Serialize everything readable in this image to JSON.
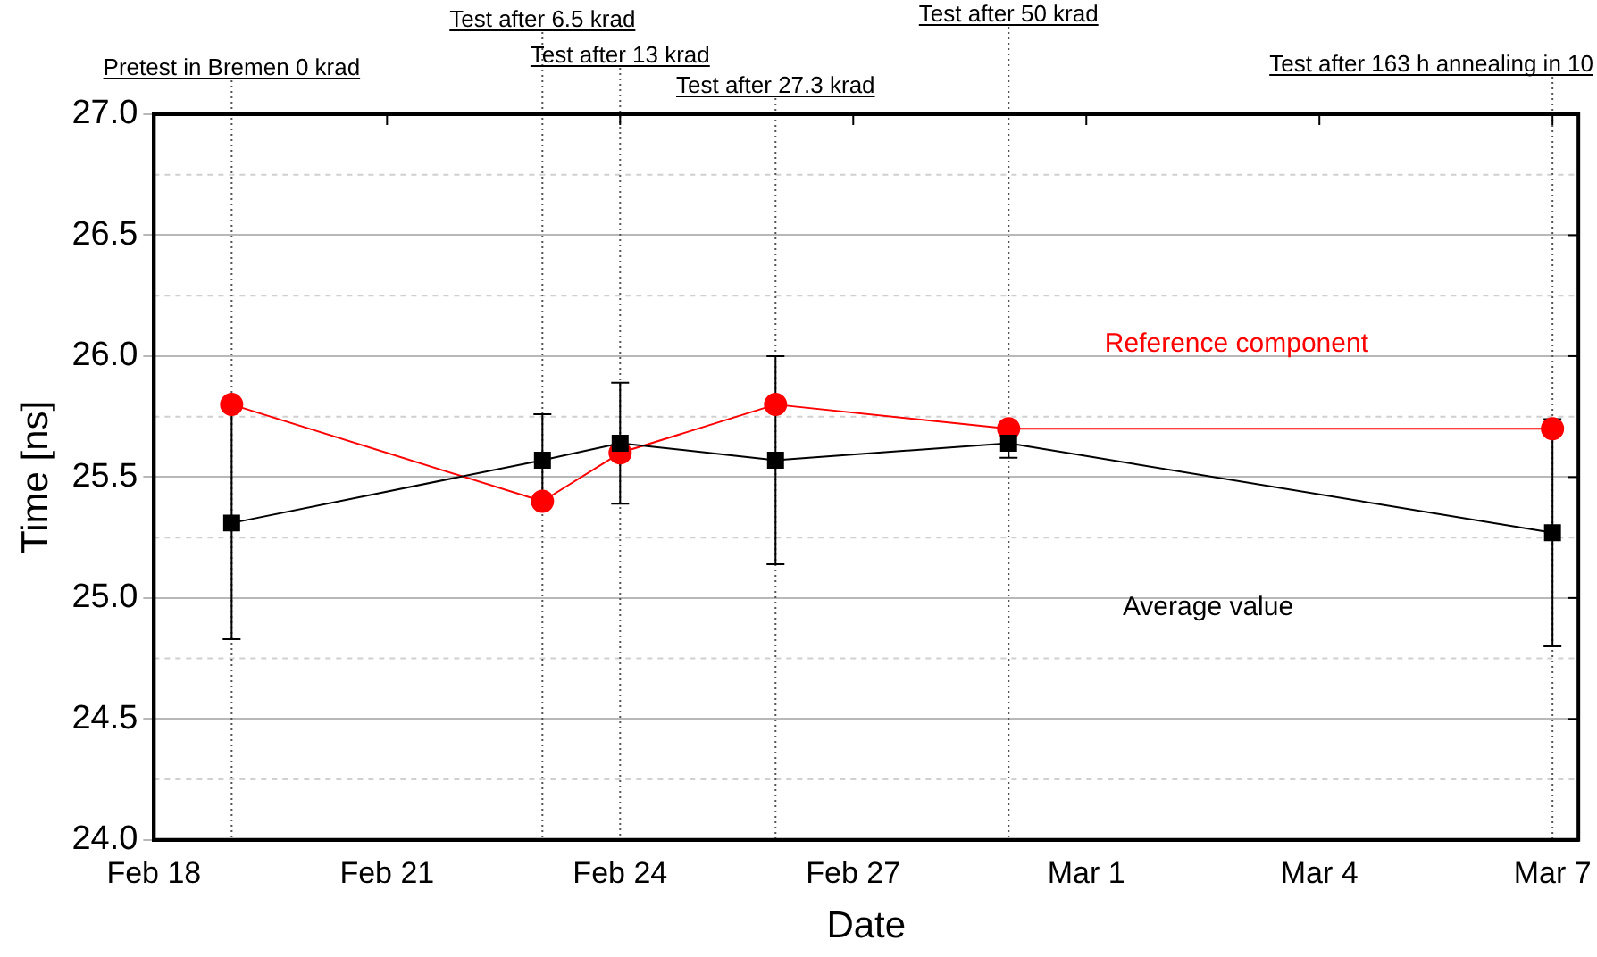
{
  "chart_data": {
    "type": "line",
    "xlabel": "Date",
    "ylabel": "Time [ns]",
    "x": [
      "--02-19",
      "--02-23",
      "--02-24",
      "--02-26",
      "--02-29",
      "--03-07"
    ],
    "series": [
      {
        "name": "Average value",
        "color": "#000000",
        "marker": "square",
        "values": [
          25.31,
          25.57,
          25.64,
          25.57,
          25.64,
          25.27
        ],
        "errors": [
          0.48,
          0.19,
          0.25,
          0.43,
          0.06,
          0.47
        ]
      },
      {
        "name": "Reference component",
        "color": "#ff0000",
        "marker": "circle",
        "values": [
          25.8,
          25.4,
          25.6,
          25.8,
          25.7,
          25.7
        ]
      }
    ],
    "xlim": [
      "--02-18",
      "--03-07T08:00"
    ],
    "xticks": [
      {
        "value": "--02-18",
        "label": "Feb 18"
      },
      {
        "value": "--02-21",
        "label": "Feb 21"
      },
      {
        "value": "--02-24",
        "label": "Feb 24"
      },
      {
        "value": "--02-27",
        "label": "Feb 27"
      },
      {
        "value": "--03-01",
        "label": "Mar 1"
      },
      {
        "value": "--03-04",
        "label": "Mar 4"
      },
      {
        "value": "--03-07",
        "label": "Mar 7"
      }
    ],
    "ylim": [
      24,
      27
    ],
    "yticks": [
      {
        "value": 24,
        "label": "24.0"
      },
      {
        "value": 24.5,
        "label": "24.5"
      },
      {
        "value": 25,
        "label": "25.0"
      },
      {
        "value": 25.5,
        "label": "25.5"
      },
      {
        "value": 26,
        "label": "26.0"
      },
      {
        "value": 26.5,
        "label": "26.5"
      },
      {
        "value": 27,
        "label": "27.0"
      }
    ],
    "grid": "y",
    "legend": false,
    "ref_lines": [
      {
        "axis": "x",
        "value": "--02-19",
        "label": "Pretest in Bremen 0 krad",
        "line_style": "dotted"
      },
      {
        "axis": "x",
        "value": "--02-23",
        "label": "Test after 6.5 krad",
        "line_style": "dotted"
      },
      {
        "axis": "x",
        "value": "--02-24",
        "label": "Test after 13 krad",
        "line_style": "dotted"
      },
      {
        "axis": "x",
        "value": "--02-26",
        "label": "Test after 27.3 krad",
        "line_style": "dotted"
      },
      {
        "axis": "x",
        "value": "--02-29",
        "label": "Test after 50 krad",
        "line_style": "dotted"
      },
      {
        "axis": "x",
        "value": "--03-07",
        "label": "Test after 163 h annealing in 10",
        "line_style": "dotted"
      }
    ]
  }
}
